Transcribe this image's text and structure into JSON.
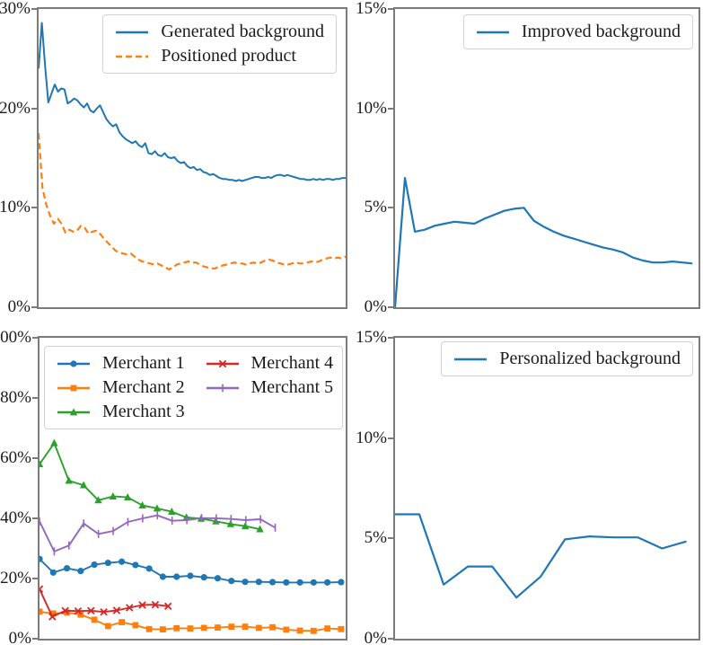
{
  "figure": {
    "background": "#ffffff",
    "spine_color": "#7b7b7b",
    "text_color": "#1b1b1b",
    "legend_border_color": "#d2d2d2"
  },
  "chart_data": [
    {
      "name": "top-left",
      "type": "line",
      "title": "",
      "xlabel": "",
      "ylabel": "",
      "grid": false,
      "ylim": [
        0,
        30
      ],
      "yticks": [
        {
          "v": 0,
          "label": "0%"
        },
        {
          "v": 10,
          "label": "10%"
        },
        {
          "v": 20,
          "label": "20%"
        },
        {
          "v": 30,
          "label": "30%"
        }
      ],
      "legend": {
        "columns": 1,
        "position": "upper right"
      },
      "series": [
        {
          "name": "Generated background",
          "color": "#1f77b4",
          "dash": "",
          "marker": "",
          "width": 2,
          "span": [
            0,
            1
          ],
          "values": [
            24.0,
            28.6,
            24.3,
            20.6,
            21.5,
            22.4,
            21.7,
            22.0,
            21.9,
            20.5,
            20.7,
            21.0,
            20.8,
            20.4,
            20.1,
            20.5,
            19.8,
            19.6,
            20.0,
            20.3,
            19.6,
            18.9,
            18.5,
            18.2,
            18.4,
            17.6,
            17.2,
            16.9,
            16.7,
            16.5,
            16.7,
            16.3,
            16.1,
            16.5,
            15.5,
            15.4,
            15.7,
            15.3,
            15.2,
            15.5,
            15.1,
            15.0,
            15.1,
            14.7,
            14.5,
            14.6,
            14.2,
            14.0,
            14.1,
            13.8,
            13.9,
            13.6,
            13.5,
            13.3,
            13.4,
            13.2,
            13.0,
            12.9,
            12.9,
            12.8,
            12.8,
            12.7,
            12.8,
            12.7,
            12.8,
            12.9,
            13.0,
            13.1,
            13.1,
            13.0,
            13.0,
            13.1,
            13.0,
            13.2,
            13.3,
            13.3,
            13.2,
            13.3,
            13.2,
            13.1,
            13.0,
            12.9,
            12.9,
            12.8,
            12.8,
            12.9,
            12.8,
            12.9,
            12.8,
            12.9,
            12.9,
            12.8,
            12.9,
            12.9,
            13.0,
            13.0
          ]
        },
        {
          "name": "Positioned product",
          "color": "#ff7f0e",
          "dash": "7 4",
          "marker": "",
          "width": 2.2,
          "span": [
            0,
            1
          ],
          "values": [
            17.5,
            12.0,
            10.3,
            9.2,
            8.4,
            8.9,
            8.4,
            7.5,
            7.8,
            7.6,
            7.7,
            8.2,
            8.0,
            7.4,
            7.6,
            7.7,
            7.4,
            6.9,
            6.5,
            6.1,
            5.7,
            5.5,
            5.4,
            5.3,
            5.4,
            5.1,
            4.8,
            4.6,
            4.5,
            4.4,
            4.3,
            4.4,
            4.2,
            4.0,
            3.8,
            4.0,
            4.3,
            4.4,
            4.5,
            4.6,
            4.5,
            4.5,
            4.3,
            4.1,
            4.0,
            3.9,
            3.9,
            4.1,
            4.2,
            4.3,
            4.4,
            4.5,
            4.4,
            4.4,
            4.3,
            4.4,
            4.5,
            4.4,
            4.5,
            4.7,
            4.8,
            4.7,
            4.5,
            4.4,
            4.3,
            4.3,
            4.4,
            4.5,
            4.4,
            4.4,
            4.5,
            4.6,
            4.5,
            4.6,
            4.8,
            4.9,
            5.0,
            4.9,
            5.0,
            4.9,
            5.1
          ]
        }
      ]
    },
    {
      "name": "top-right",
      "type": "line",
      "title": "",
      "xlabel": "",
      "ylabel": "",
      "grid": false,
      "ylim": [
        0,
        15
      ],
      "yticks": [
        {
          "v": 0,
          "label": "0%"
        },
        {
          "v": 5,
          "label": "5%"
        },
        {
          "v": 10,
          "label": "10%"
        },
        {
          "v": 15,
          "label": "15%"
        }
      ],
      "legend": {
        "columns": 1,
        "position": "upper right"
      },
      "series": [
        {
          "name": "Improved background",
          "color": "#1f77b4",
          "dash": "",
          "marker": "",
          "width": 2.2,
          "span": [
            0,
            0.98
          ],
          "values": [
            0.0,
            6.5,
            3.8,
            3.9,
            4.1,
            4.2,
            4.3,
            4.25,
            4.2,
            4.45,
            4.65,
            4.85,
            4.95,
            5.0,
            4.35,
            4.05,
            3.8,
            3.6,
            3.45,
            3.3,
            3.15,
            3.0,
            2.9,
            2.75,
            2.5,
            2.35,
            2.25,
            2.25,
            2.3,
            2.25,
            2.2
          ]
        }
      ]
    },
    {
      "name": "bottom-left",
      "type": "line",
      "title": "",
      "xlabel": "",
      "ylabel": "",
      "grid": false,
      "ylim": [
        0,
        100
      ],
      "yticks": [
        {
          "v": 0,
          "label": "0%"
        },
        {
          "v": 20,
          "label": "20%"
        },
        {
          "v": 40,
          "label": "40%"
        },
        {
          "v": 60,
          "label": "60%"
        },
        {
          "v": 80,
          "label": "80%"
        },
        {
          "v": 100,
          "label": "100%"
        }
      ],
      "legend": {
        "columns": 2,
        "position": "upper left"
      },
      "series": [
        {
          "name": "Merchant 1",
          "color": "#1f77b4",
          "dash": "",
          "marker": "circle",
          "width": 1.9,
          "span": [
            0,
            0.985
          ],
          "values": [
            26.5,
            22.0,
            23.4,
            22.5,
            24.6,
            25.2,
            25.6,
            24.5,
            23.3,
            20.6,
            20.6,
            20.9,
            20.4,
            20.1,
            19.2,
            18.9,
            18.9,
            18.8,
            18.7,
            18.7,
            18.7,
            18.7,
            18.8
          ]
        },
        {
          "name": "Merchant 2",
          "color": "#ff7f0e",
          "dash": "",
          "marker": "square",
          "width": 1.9,
          "span": [
            0,
            0.985
          ],
          "values": [
            9.0,
            8.4,
            8.7,
            8.0,
            6.3,
            4.2,
            5.5,
            4.5,
            3.2,
            3.1,
            3.5,
            3.4,
            3.6,
            3.7,
            4.0,
            4.0,
            3.6,
            3.8,
            3.0,
            2.7,
            2.6,
            3.4,
            3.2
          ]
        },
        {
          "name": "Merchant 3",
          "color": "#2ca02c",
          "dash": "",
          "marker": "triangle",
          "width": 1.9,
          "span": [
            0,
            0.72
          ],
          "values": [
            58.0,
            65.0,
            52.5,
            51.0,
            46.0,
            47.3,
            47.0,
            44.3,
            43.3,
            42.2,
            40.3,
            39.9,
            39.0,
            38.1,
            37.4,
            36.4
          ]
        },
        {
          "name": "Merchant 4",
          "color": "#d62728",
          "dash": "",
          "marker": "x",
          "width": 1.9,
          "span": [
            0,
            0.42
          ],
          "values": [
            16.5,
            7.3,
            9.3,
            9.2,
            9.3,
            8.9,
            9.4,
            10.3,
            11.2,
            11.3,
            10.8
          ]
        },
        {
          "name": "Merchant 5",
          "color": "#9467bd",
          "dash": "",
          "marker": "vbar",
          "width": 1.9,
          "span": [
            0,
            0.77
          ],
          "values": [
            39.0,
            29.0,
            31.0,
            38.3,
            34.8,
            35.8,
            38.8,
            40.0,
            41.0,
            39.2,
            39.4,
            40.1,
            40.0,
            39.8,
            39.4,
            39.7,
            36.9
          ]
        }
      ]
    },
    {
      "name": "bottom-right",
      "type": "line",
      "title": "",
      "xlabel": "",
      "ylabel": "",
      "grid": false,
      "ylim": [
        0,
        15
      ],
      "yticks": [
        {
          "v": 0,
          "label": "0%"
        },
        {
          "v": 5,
          "label": "5%"
        },
        {
          "v": 10,
          "label": "10%"
        },
        {
          "v": 15,
          "label": "15%"
        }
      ],
      "legend": {
        "columns": 1,
        "position": "upper right"
      },
      "series": [
        {
          "name": "Personalized background",
          "color": "#1f77b4",
          "dash": "",
          "marker": "",
          "width": 2.2,
          "span": [
            0,
            0.96
          ],
          "values": [
            6.2,
            6.2,
            2.7,
            3.6,
            3.6,
            2.05,
            3.1,
            4.95,
            5.1,
            5.05,
            5.05,
            4.5,
            4.85
          ]
        }
      ]
    }
  ]
}
